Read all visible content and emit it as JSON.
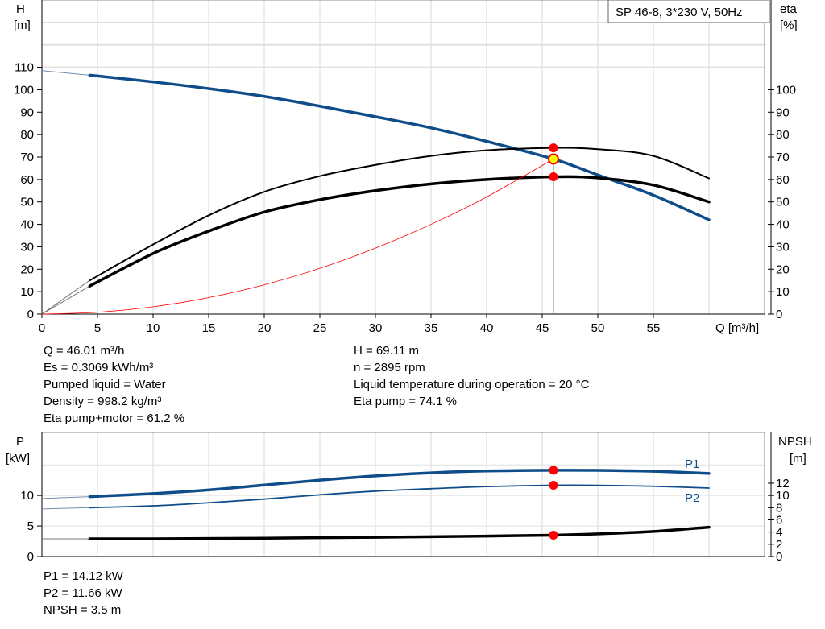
{
  "chart_data": [
    {
      "type": "line",
      "legend_box": "SP 46-8, 3*230 V, 50Hz",
      "ylabel_left": [
        "H",
        "[m]"
      ],
      "ylabel_right": [
        "eta",
        "[%]"
      ],
      "xlabel": "Q [m³/h]",
      "xlim": [
        0,
        65
      ],
      "ylim": [
        0,
        140
      ],
      "grid": true,
      "x_ticks": [
        0,
        5,
        10,
        15,
        20,
        25,
        30,
        35,
        40,
        45,
        50,
        55
      ],
      "y_ticks_left": [
        0,
        10,
        20,
        30,
        40,
        50,
        60,
        70,
        80,
        90,
        100,
        110
      ],
      "y_ticks_right": [
        0,
        10,
        20,
        30,
        40,
        50,
        60,
        70,
        80,
        90,
        100
      ],
      "series": [
        {
          "key": "H",
          "axis": "left",
          "color": "#0f4c8a",
          "width": 3.5,
          "x": [
            4.3,
            10,
            15,
            20,
            25,
            30,
            35,
            40,
            46.01,
            50,
            55,
            60
          ],
          "y": [
            106.5,
            103.5,
            100.5,
            97,
            92.7,
            88,
            83,
            77,
            69.11,
            62,
            53,
            42
          ],
          "extension": {
            "x": [
              0,
              4.3
            ],
            "y": [
              108.5,
              106.5
            ]
          }
        },
        {
          "key": "eta_pump",
          "axis": "right",
          "color": "#000000",
          "width": 2,
          "x": [
            4.3,
            10,
            15,
            20,
            25,
            30,
            35,
            40,
            46.01,
            50,
            55,
            60
          ],
          "y": [
            15,
            31,
            44,
            54.5,
            61.5,
            66.5,
            70.5,
            73,
            74.1,
            73.5,
            70.5,
            60.5
          ],
          "extension": {
            "x": [
              0,
              4.3
            ],
            "y": [
              0,
              15
            ]
          }
        },
        {
          "key": "eta_pump_motor",
          "axis": "right",
          "color": "#000000",
          "width": 3.5,
          "x": [
            4.3,
            10,
            15,
            20,
            25,
            30,
            35,
            40,
            46.01,
            50,
            55,
            60
          ],
          "y": [
            12.5,
            27,
            37,
            45.5,
            51,
            55,
            58,
            60,
            61.2,
            60.7,
            57.5,
            50
          ],
          "extension": {
            "x": [
              0,
              4.3
            ],
            "y": [
              0,
              12.5
            ]
          }
        },
        {
          "key": "system",
          "axis": "left",
          "color": "#ff0000",
          "width": 0.8,
          "x": [
            0,
            5,
            10,
            15,
            20,
            25,
            30,
            35,
            40,
            46.01
          ],
          "y": [
            0,
            0.82,
            3.27,
            7.35,
            13.06,
            20.4,
            29.4,
            40.0,
            52.2,
            69.11
          ]
        }
      ],
      "operating_point": {
        "q": 46.01,
        "h": 69.11,
        "eta_pump": 74.1,
        "eta_pump_motor": 61.2,
        "marker_color": "#ff0000",
        "duty_color": "#ffff00"
      }
    },
    {
      "type": "line",
      "ylabel_left": [
        "P",
        "[kW]"
      ],
      "ylabel_right": [
        "NPSH",
        "[m]"
      ],
      "xlim": [
        0,
        65
      ],
      "ylim": [
        0,
        20.3
      ],
      "grid": true,
      "y_ticks_left": [
        0,
        5,
        10
      ],
      "y_ticks_right": [
        0,
        2,
        4,
        6,
        8,
        10,
        12
      ],
      "series": [
        {
          "key": "P1",
          "name": "P1",
          "color": "#0f4c8a",
          "width": 3.5,
          "x": [
            4.3,
            10,
            15,
            20,
            25,
            30,
            35,
            40,
            46.01,
            50,
            55,
            60
          ],
          "y": [
            9.8,
            10.3,
            10.9,
            11.7,
            12.5,
            13.2,
            13.7,
            14.0,
            14.12,
            14.1,
            13.95,
            13.6
          ],
          "extension": {
            "x": [
              0,
              4.3
            ],
            "y": [
              9.5,
              9.8
            ]
          }
        },
        {
          "key": "P2",
          "name": "P2",
          "color": "#0f4c8a",
          "width": 1.8,
          "x": [
            4.3,
            10,
            15,
            20,
            25,
            30,
            35,
            40,
            46.01,
            50,
            55,
            60
          ],
          "y": [
            8.0,
            8.3,
            8.8,
            9.4,
            10.1,
            10.7,
            11.1,
            11.45,
            11.66,
            11.65,
            11.5,
            11.2
          ],
          "extension": {
            "x": [
              0,
              4.3
            ],
            "y": [
              7.8,
              8.0
            ]
          }
        },
        {
          "key": "NPSH",
          "color": "#000000",
          "width": 3.5,
          "x": [
            4.3,
            10,
            20,
            30,
            40,
            46.01,
            50,
            55,
            60
          ],
          "y": [
            2.9,
            2.9,
            3.0,
            3.15,
            3.35,
            3.5,
            3.7,
            4.1,
            4.8
          ],
          "extension": {
            "x": [
              0,
              4.3
            ],
            "y": [
              2.9,
              2.9
            ]
          }
        }
      ],
      "operating_point": {
        "q": 46.01,
        "p1": 14.12,
        "p2": 11.66,
        "npsh": 3.5
      }
    }
  ],
  "info_top_left": [
    "Q = 46.01 m³/h",
    "Es = 0.3069 kWh/m³",
    "Pumped liquid = Water",
    "Density = 998.2 kg/m³",
    "Eta pump+motor = 61.2 %"
  ],
  "info_top_right": [
    "H = 69.11 m",
    "n = 2895 rpm",
    "Liquid temperature during operation = 20 °C",
    "Eta pump = 74.1 %"
  ],
  "info_bottom": [
    "P1 = 14.12 kW",
    "P2 = 11.66 kW",
    "NPSH = 3.5 m"
  ]
}
